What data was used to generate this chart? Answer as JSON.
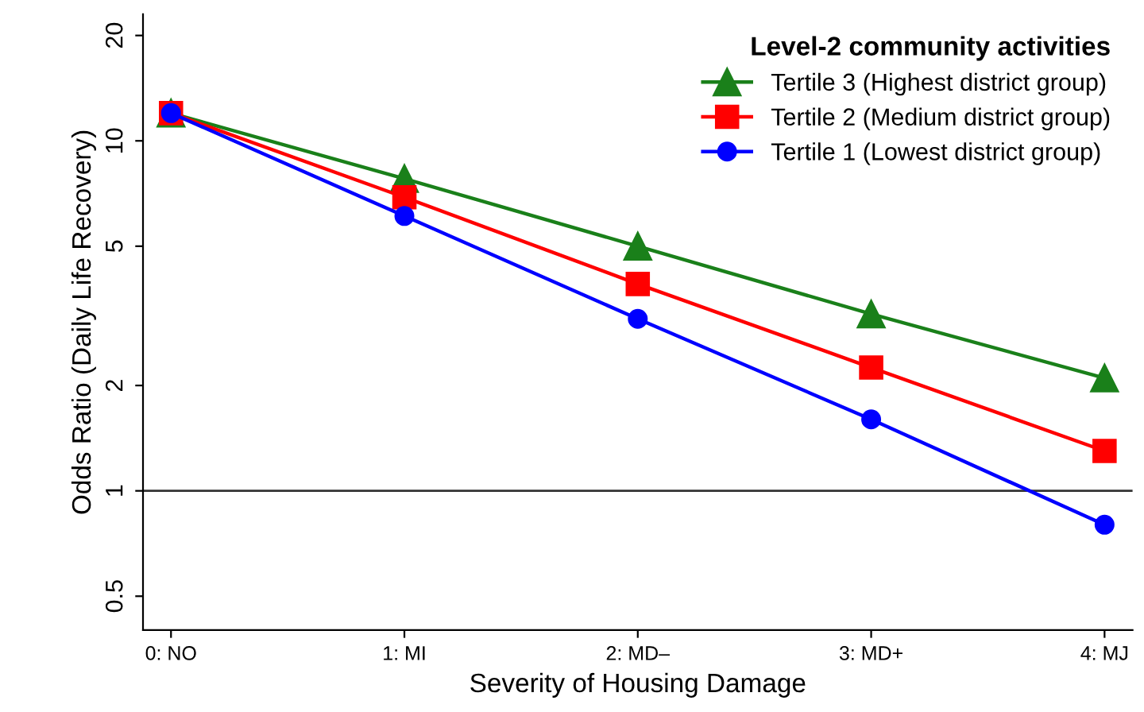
{
  "chart_data": {
    "type": "line",
    "xlabel": "Severity of Housing Damage",
    "ylabel": "Odds Ratio (Daily Life Recovery)",
    "legend_title": "Level-2 community activities",
    "categories": [
      "0: NO",
      "1: MI",
      "2: MD–",
      "3: MD+",
      "4: MJ"
    ],
    "series": [
      {
        "name": "Tertile 3 (Highest district group)",
        "color": "#1a801a",
        "marker": "triangle",
        "values": [
          12,
          7.8,
          5.0,
          3.2,
          2.1
        ]
      },
      {
        "name": "Tertile 2 (Medium district group)",
        "color": "#ff0000",
        "marker": "square",
        "values": [
          12,
          6.9,
          3.9,
          2.25,
          1.3
        ]
      },
      {
        "name": "Tertile 1 (Lowest district group)",
        "color": "#0000ff",
        "marker": "circle",
        "values": [
          12,
          6.1,
          3.1,
          1.6,
          0.8
        ]
      }
    ],
    "log": "y",
    "ylim": [
      0.4,
      23
    ],
    "yticks": [
      0.5,
      1,
      2,
      5,
      10,
      20
    ],
    "grid": false,
    "legend": "top right",
    "line_style": "solid",
    "ref_lines": [
      {
        "axis": "y",
        "value": 1,
        "color": "#333333"
      }
    ]
  }
}
